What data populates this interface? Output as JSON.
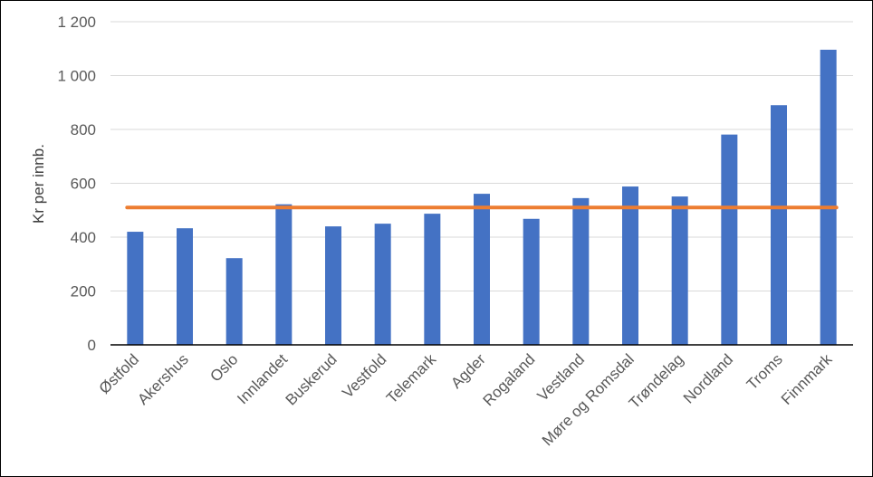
{
  "chart_data": {
    "type": "bar",
    "title": "",
    "xlabel": "",
    "ylabel": "Kr per innb.",
    "categories": [
      "Østfold",
      "Akershus",
      "Oslo",
      "Innlandet",
      "Buskerud",
      "Vestfold",
      "Telemark",
      "Agder",
      "Rogaland",
      "Vestland",
      "Møre og Romsdal",
      "Trøndelag",
      "Nordland",
      "Troms",
      "Finnmark"
    ],
    "values": [
      420,
      433,
      322,
      522,
      440,
      450,
      487,
      561,
      468,
      545,
      588,
      551,
      781,
      890,
      1096
    ],
    "reference_line": {
      "type": "line",
      "value": 510,
      "color": "#ED7D31"
    },
    "ylim": [
      0,
      1200
    ],
    "yticks": [
      0,
      200,
      400,
      600,
      800,
      1000,
      1200
    ],
    "ytick_labels": [
      "0",
      "200",
      "400",
      "600",
      "800",
      "1 000",
      "1 200"
    ],
    "grid": true,
    "legend": "none",
    "colors": {
      "bar": "#4472C4",
      "line": "#ED7D31",
      "grid": "#D9D9D9",
      "axis": "#000000",
      "tick_text": "#595959"
    }
  }
}
